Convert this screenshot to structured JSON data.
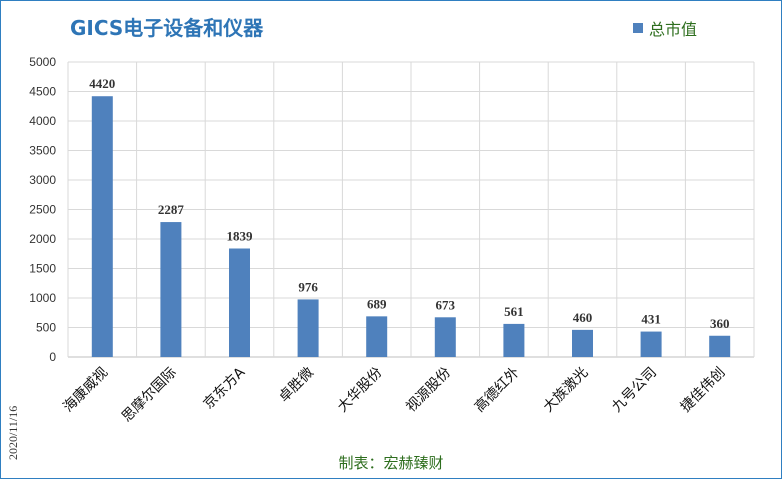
{
  "chart_data": {
    "type": "bar",
    "title": "GICS电子设备和仪器",
    "categories": [
      "海康威视",
      "思摩尔国际",
      "京东方A",
      "卓胜微",
      "大华股份",
      "视源股份",
      "高德红外",
      "大族激光",
      "九号公司",
      "捷佳伟创"
    ],
    "series": [
      {
        "name": "总市值",
        "values": [
          4420,
          2287,
          1839,
          976,
          689,
          673,
          561,
          460,
          431,
          360
        ]
      }
    ],
    "ylim": [
      0,
      5000
    ],
    "yticks": [
      0,
      500,
      1000,
      1500,
      2000,
      2500,
      3000,
      3500,
      4000,
      4500,
      5000
    ],
    "xlabel": "",
    "ylabel": "",
    "grid": true,
    "legend_position": "top-right",
    "bar_color": "#4f81bd",
    "gridline_color": "#d9d9d9"
  },
  "footer": {
    "date": "2020/11/16",
    "credit": "制表：宏赫臻财"
  },
  "colors": {
    "title": "#2e75b6",
    "frame": "#2f7fc1",
    "legend_text": "#2e6e1e",
    "credit_text": "#2e6e1e"
  }
}
